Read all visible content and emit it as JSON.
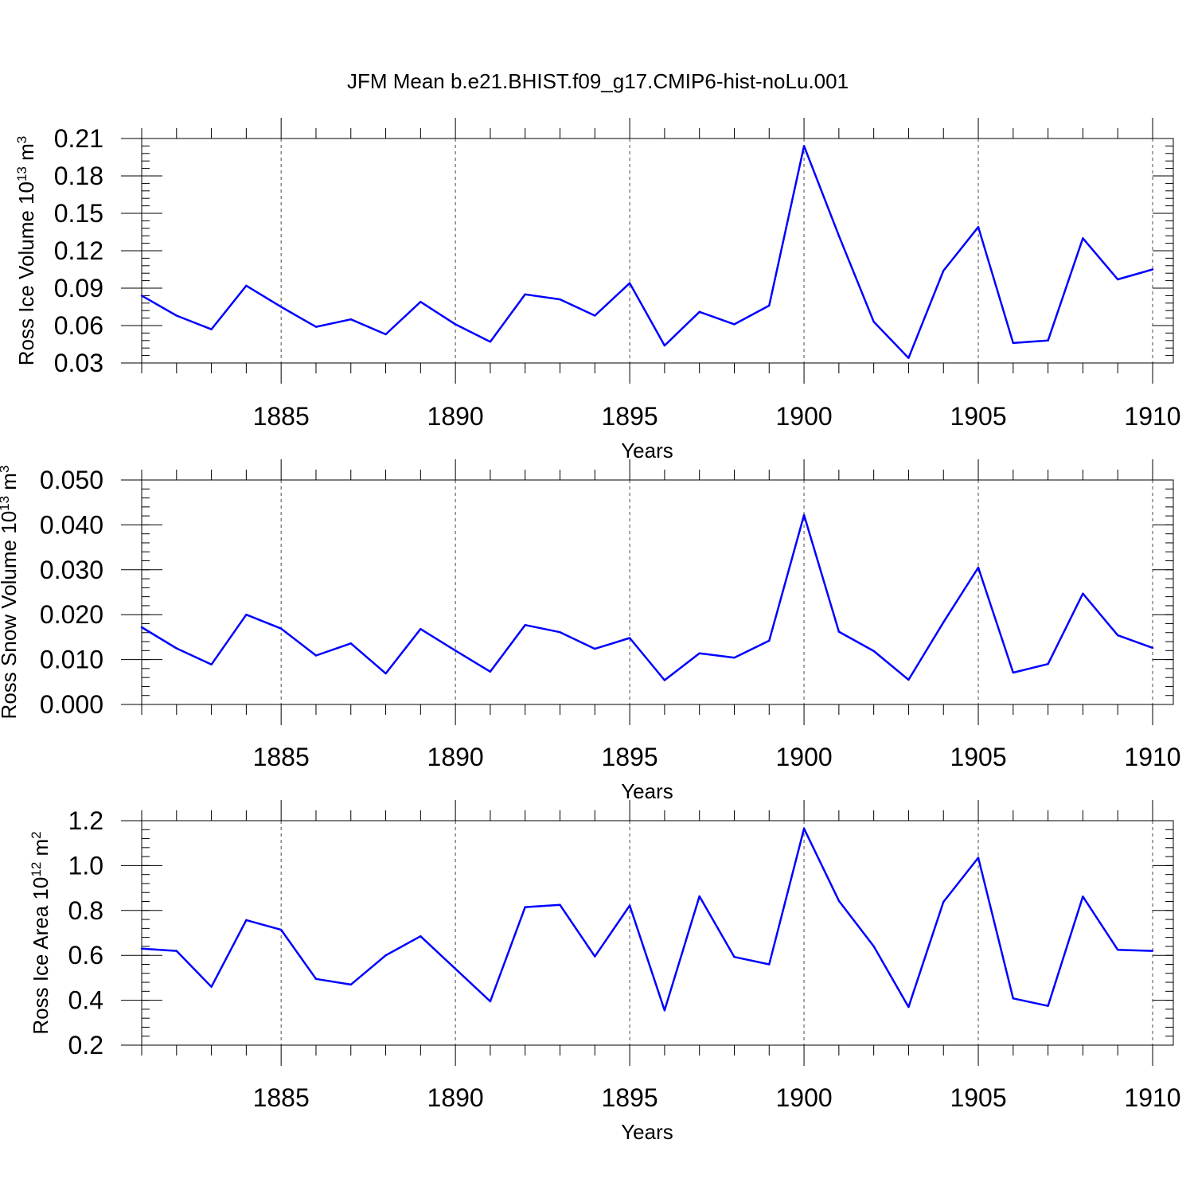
{
  "title": "JFM Mean b.e21.BHIST.f09_g17.CMIP6-hist-noLu.001",
  "colors": {
    "series": "#0000ff",
    "axis": "#000000",
    "grid": "#000000"
  },
  "chart_data": [
    {
      "type": "line",
      "xlabel": "Years",
      "ylabel": {
        "text": "Ross Ice Volume 10",
        "exponent": "13",
        "unit": " m",
        "unit_exponent": "3"
      },
      "ylim": [
        0.03,
        0.21
      ],
      "xlim": [
        1881,
        1910
      ],
      "yticks": [
        "0.03",
        "0.06",
        "0.09",
        "0.12",
        "0.15",
        "0.18",
        "0.21"
      ],
      "xticks": [
        "1885",
        "1890",
        "1895",
        "1900",
        "1905",
        "1910"
      ],
      "grid": "dashed vertical at major x ticks",
      "x": [
        1881,
        1882,
        1883,
        1884,
        1885,
        1886,
        1887,
        1888,
        1889,
        1890,
        1891,
        1892,
        1893,
        1894,
        1895,
        1896,
        1897,
        1898,
        1899,
        1900,
        1901,
        1902,
        1903,
        1904,
        1905,
        1906,
        1907,
        1908,
        1909,
        1910
      ],
      "values": [
        0.084,
        0.068,
        0.057,
        0.092,
        0.075,
        0.059,
        0.065,
        0.053,
        0.079,
        0.061,
        0.047,
        0.085,
        0.081,
        0.068,
        0.094,
        0.044,
        0.071,
        0.061,
        0.076,
        0.204,
        0.132,
        0.063,
        0.034,
        0.104,
        0.139,
        0.046,
        0.048,
        0.13,
        0.097,
        0.105
      ]
    },
    {
      "type": "line",
      "xlabel": "Years",
      "ylabel": {
        "text": "Ross Snow Volume 10",
        "exponent": "13",
        "unit": " m",
        "unit_exponent": "3"
      },
      "ylim": [
        0.0,
        0.05
      ],
      "xlim": [
        1881,
        1910
      ],
      "yticks": [
        "0.000",
        "0.010",
        "0.020",
        "0.030",
        "0.040",
        "0.050"
      ],
      "xticks": [
        "1885",
        "1890",
        "1895",
        "1900",
        "1905",
        "1910"
      ],
      "grid": "dashed vertical at major x ticks",
      "x": [
        1881,
        1882,
        1883,
        1884,
        1885,
        1886,
        1887,
        1888,
        1889,
        1890,
        1891,
        1892,
        1893,
        1894,
        1895,
        1896,
        1897,
        1898,
        1899,
        1900,
        1901,
        1902,
        1903,
        1904,
        1905,
        1906,
        1907,
        1908,
        1909,
        1910
      ],
      "values": [
        0.0172,
        0.0125,
        0.0089,
        0.02,
        0.0169,
        0.0109,
        0.0136,
        0.0069,
        0.0168,
        0.012,
        0.0073,
        0.0177,
        0.0161,
        0.0124,
        0.0148,
        0.0054,
        0.0114,
        0.0104,
        0.0142,
        0.0422,
        0.0162,
        0.0119,
        0.0055,
        0.0183,
        0.0305,
        0.0071,
        0.009,
        0.0247,
        0.0154,
        0.0126
      ]
    },
    {
      "type": "line",
      "xlabel": "Years",
      "ylabel": {
        "text": "Ross Ice Area 10",
        "exponent": "12",
        "unit": " m",
        "unit_exponent": "2"
      },
      "ylim": [
        0.2,
        1.2
      ],
      "xlim": [
        1881,
        1910
      ],
      "yticks": [
        "0.2",
        "0.4",
        "0.6",
        "0.8",
        "1.0",
        "1.2"
      ],
      "xticks": [
        "1885",
        "1890",
        "1895",
        "1900",
        "1905",
        "1910"
      ],
      "grid": "dashed vertical at major x ticks",
      "x": [
        1881,
        1882,
        1883,
        1884,
        1885,
        1886,
        1887,
        1888,
        1889,
        1890,
        1891,
        1892,
        1893,
        1894,
        1895,
        1896,
        1897,
        1898,
        1899,
        1900,
        1901,
        1902,
        1903,
        1904,
        1905,
        1906,
        1907,
        1908,
        1909,
        1910
      ],
      "values": [
        0.63,
        0.62,
        0.46,
        0.757,
        0.714,
        0.495,
        0.47,
        0.6,
        0.685,
        0.54,
        0.395,
        0.815,
        0.825,
        0.595,
        0.822,
        0.355,
        0.863,
        0.593,
        0.56,
        1.165,
        0.843,
        0.64,
        0.37,
        0.838,
        1.035,
        0.408,
        0.375,
        0.862,
        0.625,
        0.62
      ]
    }
  ]
}
